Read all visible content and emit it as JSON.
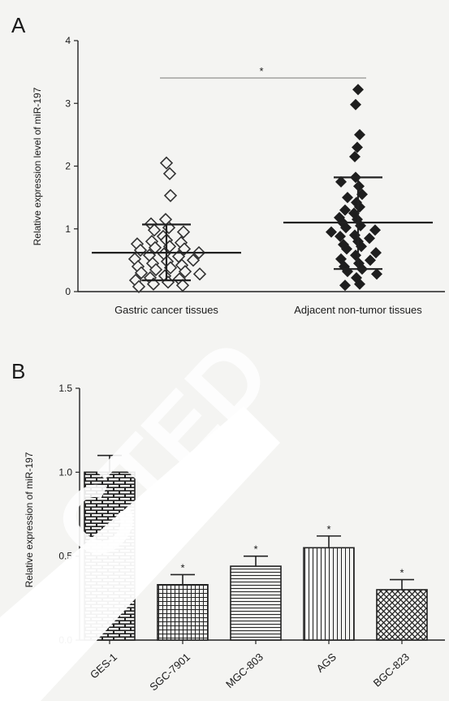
{
  "panel_labels": {
    "a": "A",
    "b": "B"
  },
  "chart_data": [
    {
      "type": "scatter",
      "panel": "A",
      "ylabel": "Relative expression level of miR-197",
      "xlabel": "",
      "ylim": [
        0,
        4
      ],
      "yticks": [
        "0",
        "1",
        "2",
        "3",
        "4"
      ],
      "significance": "*",
      "groups": [
        {
          "label": "Gastric cancer tissues",
          "marker": "open-diamond",
          "mean": 0.62,
          "sd_low": 0.18,
          "sd_high": 1.07,
          "values": [
            2.05,
            1.88,
            1.53,
            1.15,
            1.08,
            1.02,
            0.98,
            0.95,
            0.88,
            0.82,
            0.8,
            0.78,
            0.76,
            0.72,
            0.7,
            0.68,
            0.66,
            0.62,
            0.6,
            0.58,
            0.56,
            0.52,
            0.5,
            0.48,
            0.45,
            0.42,
            0.4,
            0.38,
            0.35,
            0.32,
            0.3,
            0.28,
            0.25,
            0.22,
            0.2,
            0.18,
            0.15,
            0.12,
            0.1,
            0.08
          ]
        },
        {
          "label": "Adjacent non-tumor tissues",
          "marker": "filled-diamond",
          "mean": 1.1,
          "sd_low": 0.36,
          "sd_high": 1.82,
          "values": [
            3.22,
            2.98,
            2.5,
            2.3,
            2.15,
            1.82,
            1.75,
            1.68,
            1.55,
            1.5,
            1.42,
            1.35,
            1.3,
            1.25,
            1.18,
            1.15,
            1.1,
            1.05,
            1.02,
            0.98,
            0.95,
            0.9,
            0.88,
            0.85,
            0.8,
            0.75,
            0.72,
            0.68,
            0.62,
            0.58,
            0.52,
            0.5,
            0.45,
            0.4,
            0.36,
            0.32,
            0.28,
            0.22,
            0.12,
            0.1
          ]
        }
      ]
    },
    {
      "type": "bar",
      "panel": "B",
      "ylabel": "Relative expression of miR-197",
      "xlabel": "",
      "ylim": [
        0,
        1.5
      ],
      "yticks": [
        "0.0",
        "0.5",
        "1.0",
        "1.5"
      ],
      "categories": [
        "GES-1",
        "SGC-7901",
        "MGC-803",
        "AGS",
        "BGC-823"
      ],
      "values": [
        1.0,
        0.33,
        0.44,
        0.55,
        0.3
      ],
      "errors": [
        0.1,
        0.06,
        0.06,
        0.07,
        0.06
      ],
      "significance": [
        "",
        "*",
        "*",
        "*",
        "*"
      ],
      "patterns": [
        "brick",
        "grid",
        "horizontal",
        "vertical",
        "crosshatch"
      ]
    }
  ],
  "watermark": {
    "text": "RETRACTED",
    "color": "#ffffff",
    "visible_fragment": "CTED"
  }
}
